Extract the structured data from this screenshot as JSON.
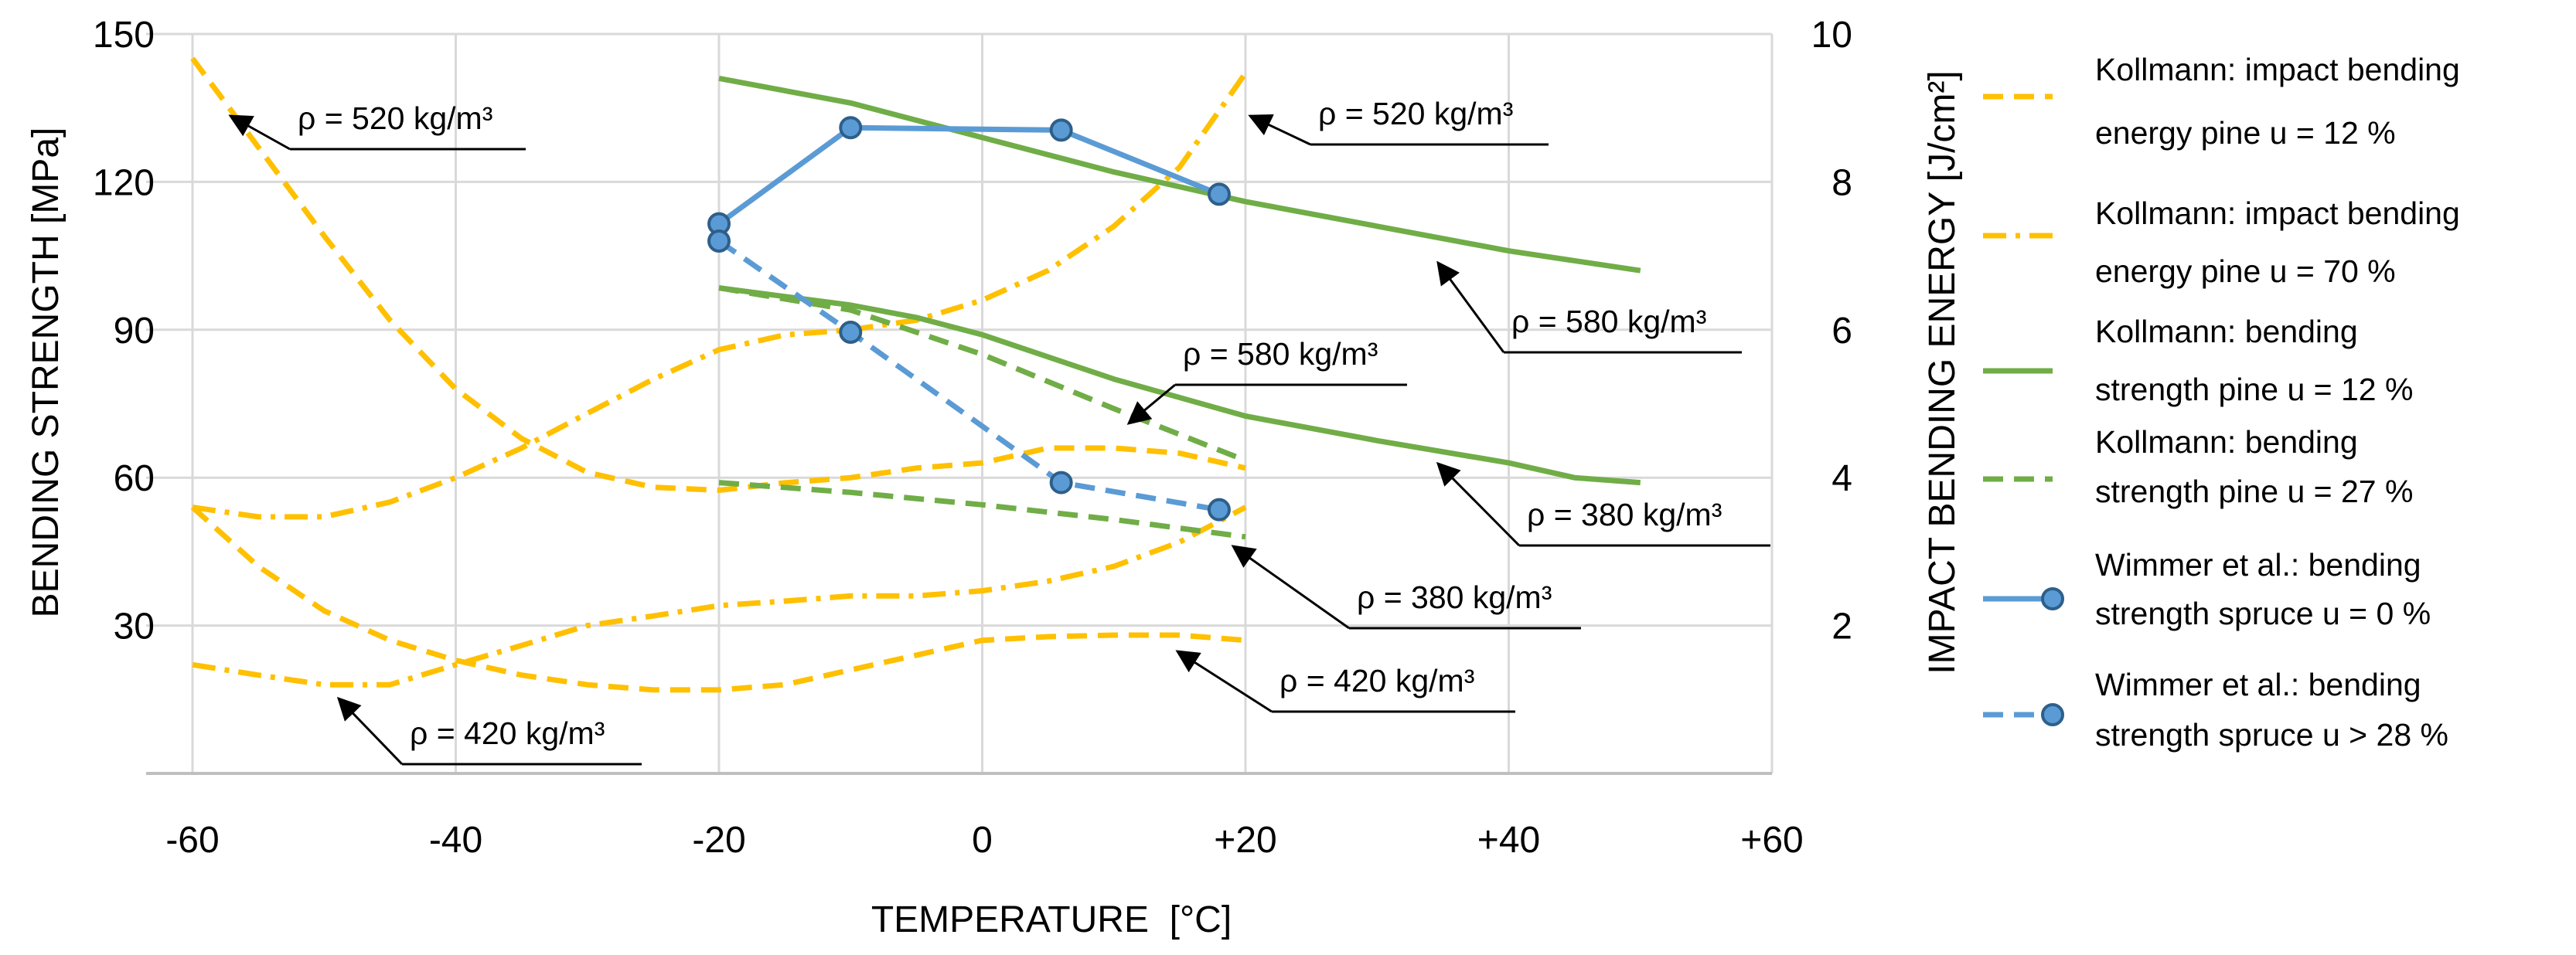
{
  "chart_data": {
    "type": "line",
    "xlabel": "TEMPERATURE  [°C]",
    "ylabel_left": "BENDING STRENGTH [MPa]",
    "ylabel_right": "IMPACT BENDING ENERGY [J/cm²]",
    "xlim": [
      -60,
      60
    ],
    "ylim_left": [
      0,
      150
    ],
    "ylim_right": [
      0,
      10
    ],
    "x_ticks": [
      -60,
      -40,
      -20,
      0,
      20,
      40,
      60
    ],
    "x_tick_labels": [
      "-60",
      "-40",
      "-20",
      "0",
      "+20",
      "+40",
      "+60"
    ],
    "y_ticks_left": [
      30,
      60,
      90,
      120,
      150
    ],
    "y_tick_labels_left": [
      "30",
      "60",
      "90",
      "120",
      "150"
    ],
    "y_ticks_right": [
      2,
      4,
      6,
      8,
      10
    ],
    "y_tick_labels_right": [
      "2",
      "4",
      "6",
      "8",
      "10"
    ],
    "grid": true,
    "legend_position": "right",
    "colors": {
      "yellow": "#FFC000",
      "green": "#70AD47",
      "blue": "#5B9BD5",
      "blue_edge": "#2E5F8A"
    },
    "series": [
      {
        "name": "Kollmann: impact bending energy pine u = 12 %",
        "legend_lines": [
          "Kollmann: impact bending",
          "energy pine u = 12 %"
        ],
        "axis": "right",
        "color": "#FFC000",
        "dash": "dashed",
        "marker": false,
        "curves": [
          {
            "label": "ρ = 520 kg/m³",
            "points": [
              [
                -60,
                9.67
              ],
              [
                -55,
                8.47
              ],
              [
                -50,
                7.27
              ],
              [
                -45,
                6.13
              ],
              [
                -40,
                5.2
              ],
              [
                -35,
                4.53
              ],
              [
                -30,
                4.07
              ],
              [
                -25,
                3.87
              ],
              [
                -20,
                3.83
              ],
              [
                -15,
                3.93
              ],
              [
                -10,
                4.0
              ],
              [
                -5,
                4.13
              ],
              [
                0,
                4.2
              ],
              [
                5,
                4.4
              ],
              [
                10,
                4.4
              ],
              [
                15,
                4.33
              ],
              [
                20,
                4.13
              ]
            ]
          },
          {
            "label": "ρ = 420 kg/m³",
            "points": [
              [
                -60,
                3.6
              ],
              [
                -55,
                2.8
              ],
              [
                -50,
                2.2
              ],
              [
                -45,
                1.8
              ],
              [
                -40,
                1.53
              ],
              [
                -35,
                1.33
              ],
              [
                -30,
                1.2
              ],
              [
                -25,
                1.13
              ],
              [
                -20,
                1.13
              ],
              [
                -15,
                1.2
              ],
              [
                -10,
                1.4
              ],
              [
                -5,
                1.6
              ],
              [
                0,
                1.8
              ],
              [
                5,
                1.85
              ],
              [
                10,
                1.87
              ],
              [
                15,
                1.87
              ],
              [
                20,
                1.8
              ]
            ]
          }
        ]
      },
      {
        "name": "Kollmann: impact bending energy pine u = 70 %",
        "legend_lines": [
          "Kollmann: impact bending",
          "energy pine u = 70 %"
        ],
        "axis": "right",
        "color": "#FFC000",
        "dash": "dashdot",
        "marker": false,
        "curves": [
          {
            "label": "ρ = 520 kg/m³",
            "points": [
              [
                -60,
                3.6
              ],
              [
                -55,
                3.47
              ],
              [
                -50,
                3.47
              ],
              [
                -45,
                3.67
              ],
              [
                -40,
                4.0
              ],
              [
                -35,
                4.4
              ],
              [
                -30,
                4.87
              ],
              [
                -25,
                5.33
              ],
              [
                -20,
                5.73
              ],
              [
                -15,
                5.93
              ],
              [
                -10,
                6.0
              ],
              [
                -5,
                6.13
              ],
              [
                0,
                6.4
              ],
              [
                5,
                6.8
              ],
              [
                10,
                7.4
              ],
              [
                15,
                8.2
              ],
              [
                20,
                9.47
              ]
            ]
          },
          {
            "label": "ρ = 420 kg/m³",
            "points": [
              [
                -60,
                1.47
              ],
              [
                -55,
                1.33
              ],
              [
                -50,
                1.2
              ],
              [
                -45,
                1.2
              ],
              [
                -40,
                1.47
              ],
              [
                -35,
                1.73
              ],
              [
                -30,
                2.0
              ],
              [
                -25,
                2.13
              ],
              [
                -20,
                2.27
              ],
              [
                -15,
                2.33
              ],
              [
                -10,
                2.4
              ],
              [
                -5,
                2.4
              ],
              [
                0,
                2.47
              ],
              [
                5,
                2.6
              ],
              [
                10,
                2.8
              ],
              [
                15,
                3.13
              ],
              [
                20,
                3.6
              ]
            ]
          }
        ]
      },
      {
        "name": "Kollmann: bending strength pine u = 12 %",
        "legend_lines": [
          "Kollmann: bending",
          "strength pine u = 12 %"
        ],
        "axis": "left",
        "color": "#70AD47",
        "dash": "solid",
        "marker": false,
        "curves": [
          {
            "label": "ρ = 580 kg/m³",
            "points": [
              [
                -20,
                141
              ],
              [
                -10,
                136
              ],
              [
                0,
                129
              ],
              [
                10,
                122
              ],
              [
                20,
                116
              ],
              [
                30,
                111
              ],
              [
                40,
                106
              ],
              [
                50,
                102
              ]
            ]
          },
          {
            "label": "ρ = 380 kg/m³",
            "points": [
              [
                -20,
                98.5
              ],
              [
                -10,
                95
              ],
              [
                -5,
                92.5
              ],
              [
                0,
                89
              ],
              [
                10,
                80
              ],
              [
                20,
                72.5
              ],
              [
                30,
                67.5
              ],
              [
                40,
                63
              ],
              [
                45,
                60
              ],
              [
                50,
                59
              ]
            ]
          }
        ]
      },
      {
        "name": "Kollmann: bending strength pine u = 27 %",
        "legend_lines": [
          "Kollmann: bending",
          "strength pine u = 27 %"
        ],
        "axis": "left",
        "color": "#70AD47",
        "dash": "dashed",
        "marker": false,
        "curves": [
          {
            "label": "ρ = 580 kg/m³",
            "points": [
              [
                -20,
                98.5
              ],
              [
                -10,
                94
              ],
              [
                0,
                85
              ],
              [
                10,
                74
              ],
              [
                20,
                63.5
              ]
            ]
          },
          {
            "label": "ρ = 380 kg/m³",
            "points": [
              [
                -20,
                59
              ],
              [
                -10,
                57
              ],
              [
                0,
                54.5
              ],
              [
                10,
                51.5
              ],
              [
                20,
                48
              ]
            ]
          }
        ]
      },
      {
        "name": "Wimmer et al.: bending strength spruce u = 0 %",
        "legend_lines": [
          "Wimmer et al.: bending",
          " strength spruce u = 0 %"
        ],
        "axis": "left",
        "color": "#5B9BD5",
        "dash": "solid",
        "marker": true,
        "curves": [
          {
            "label": "",
            "points": [
              [
                -20,
                111.5
              ],
              [
                -10,
                131
              ],
              [
                6,
                130.5
              ],
              [
                18,
                117.5
              ]
            ]
          }
        ]
      },
      {
        "name": "Wimmer et al.: bending strength spruce u > 28 %",
        "legend_lines": [
          "Wimmer et al.: bending",
          " strength spruce u > 28 %"
        ],
        "axis": "left",
        "color": "#5B9BD5",
        "dash": "dashed",
        "marker": true,
        "curves": [
          {
            "label": "",
            "points": [
              [
                -20,
                108
              ],
              [
                -10,
                89.5
              ],
              [
                6,
                59
              ],
              [
                18,
                53.5
              ]
            ]
          }
        ]
      }
    ],
    "annotations": [
      "ρ = 520 kg/m³",
      "ρ = 520 kg/m³",
      "ρ = 580 kg/m³",
      "ρ = 580 kg/m³",
      "ρ = 380 kg/m³",
      "ρ = 380 kg/m³",
      "ρ = 420 kg/m³",
      "ρ = 420 kg/m³"
    ]
  }
}
